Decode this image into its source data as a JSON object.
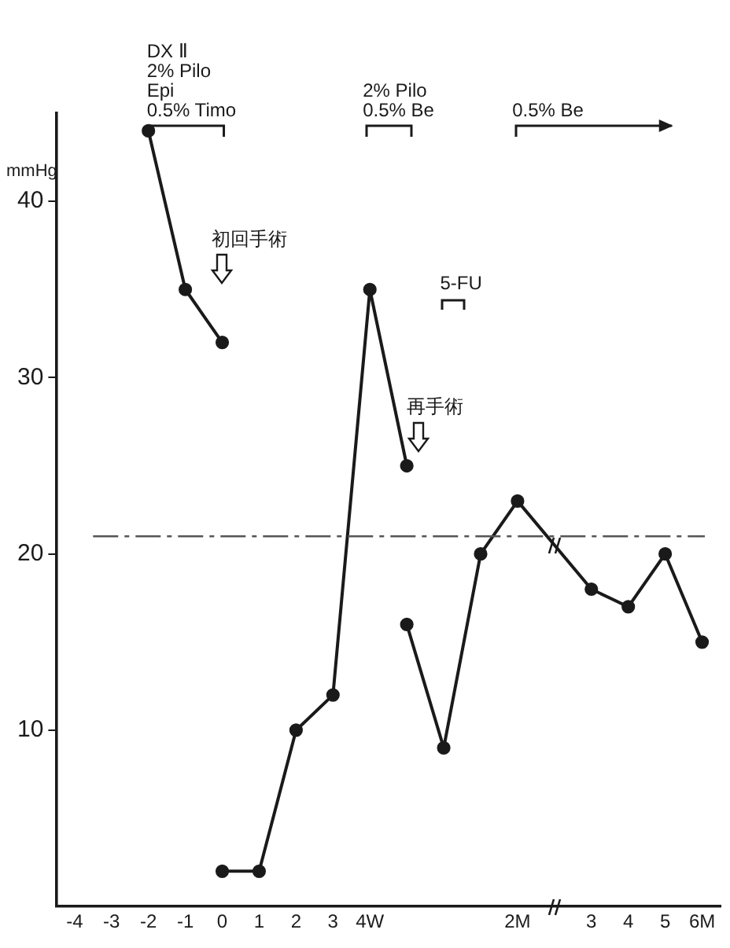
{
  "chart_data": {
    "type": "line",
    "ylabel": "mmHg",
    "categories": [
      "-4",
      "-3",
      "-2",
      "-1",
      "0",
      "1",
      "2",
      "3",
      "4W",
      null,
      null,
      null,
      "2M",
      null,
      "3",
      "4",
      "5",
      "6M"
    ],
    "series": [
      {
        "color": "#1a1a1a",
        "values": [
          null,
          null,
          44,
          35,
          32,
          null,
          null,
          null,
          null,
          null,
          null,
          null,
          null,
          null,
          null,
          null,
          null,
          null
        ]
      },
      {
        "color": "#1a1a1a",
        "values": [
          null,
          null,
          null,
          null,
          2,
          2,
          10,
          12,
          35,
          25,
          null,
          null,
          null,
          null,
          null,
          null,
          null,
          null
        ]
      },
      {
        "color": "#1a1a1a",
        "values": [
          null,
          null,
          null,
          null,
          null,
          null,
          null,
          null,
          null,
          16,
          9,
          20,
          23,
          null,
          18,
          17,
          20,
          15
        ]
      }
    ],
    "ylim": [
      0,
      45
    ],
    "yticks": [
      10,
      20,
      30,
      40
    ],
    "ref_lines": [
      {
        "axis": "y",
        "value": 21,
        "color": "#555555"
      }
    ],
    "annotations": [
      "DX Ⅱ\n2% Pilo\nEpi\n0.5% Timo",
      "2% Pilo\n0.5% Be",
      "0.5% Be",
      "初回手術",
      "5-FU",
      "再手術"
    ],
    "grid": false,
    "legend": false,
    "marker": "circle",
    "line_style": "solid"
  }
}
